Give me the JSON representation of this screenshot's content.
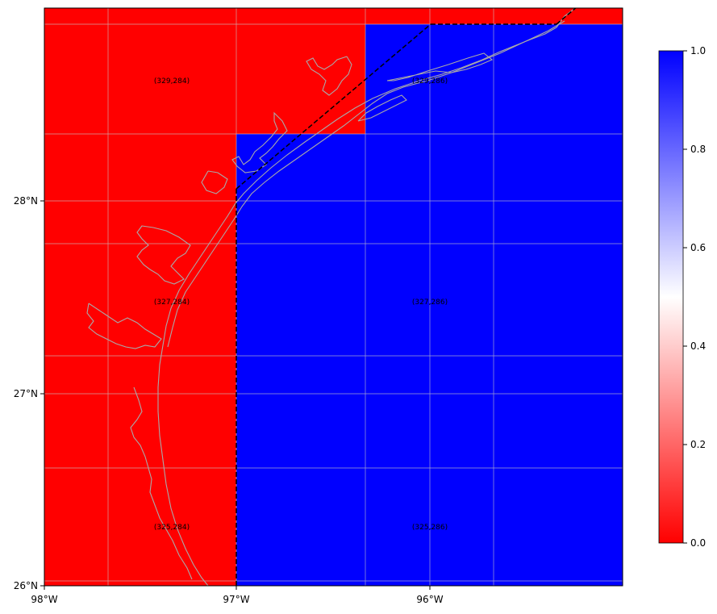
{
  "map": {
    "x_ticks": [
      "98°W",
      "97°W",
      "96°W"
    ],
    "y_ticks": [
      "26°N",
      "27°N",
      "28°N"
    ],
    "cell_labels": [
      "(329,284)",
      "(329,286)",
      "(327,284)",
      "(327,286)",
      "(325,284)",
      "(325,286)"
    ],
    "colors": {
      "zero": "#ff0000",
      "one": "#0000ff",
      "mid": "#ffffff",
      "coast": "#a9a9a9",
      "grid": "#c8c8c8",
      "boundary": "#000000"
    },
    "cell_values": [
      0,
      1,
      0,
      1,
      0,
      1
    ]
  },
  "colorbar": {
    "ticks": [
      "0.0",
      "0.2",
      "0.4",
      "0.6",
      "0.8",
      "1.0"
    ],
    "range": [
      0,
      1
    ]
  }
}
